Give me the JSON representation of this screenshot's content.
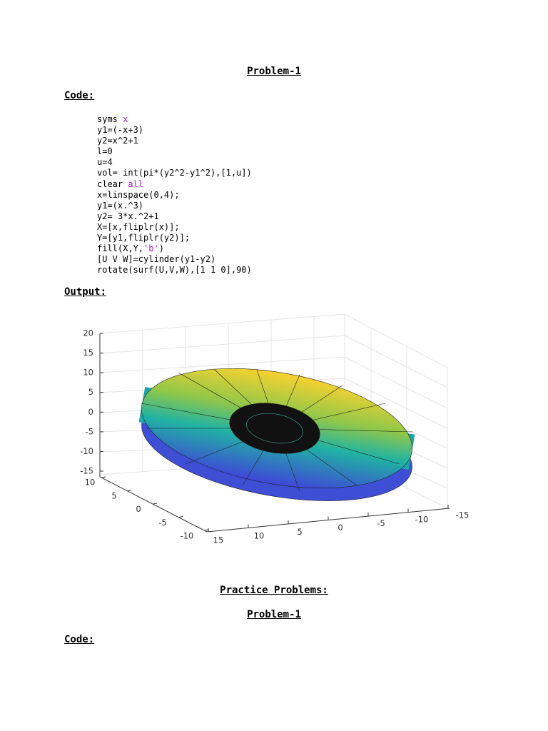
{
  "title": "Problem-1",
  "code_heading": "Code:",
  "code_lines": [
    [
      "syms ",
      "x"
    ],
    [
      "y1=(-x+3)"
    ],
    [
      "y2=x^2+1"
    ],
    [
      "l=0"
    ],
    [
      "u=4"
    ],
    [
      "vol= int(pi*(y2^2-y1^2),[1,u])"
    ],
    [
      "clear ",
      "all"
    ],
    [
      "x=linspace(0,4);"
    ],
    [
      "y1=(x.^3)"
    ],
    [
      "y2= 3*x.^2+1"
    ],
    [
      "X=[x,fliplr(x)];"
    ],
    [
      "Y=[y1,fliplr(y2)];"
    ],
    [
      "fill(X,Y,",
      "'b'",
      ")"
    ],
    [
      "[U V W]=cylinder(y1-y2)"
    ],
    [
      "rotate(surf(U,V,W),[1 1 0],90)"
    ]
  ],
  "output_heading": "Output:",
  "plot": {
    "zticks": [
      20,
      15,
      10,
      5,
      0,
      -5,
      -10,
      -15
    ],
    "yticks": [
      10,
      5,
      0,
      -5,
      -10
    ],
    "xticks": [
      15,
      10,
      5,
      0,
      -5,
      -10,
      -15
    ]
  },
  "practice_heading": "Practice Problems:",
  "practice_problem_title": "Problem-1",
  "practice_code_heading": "Code:"
}
